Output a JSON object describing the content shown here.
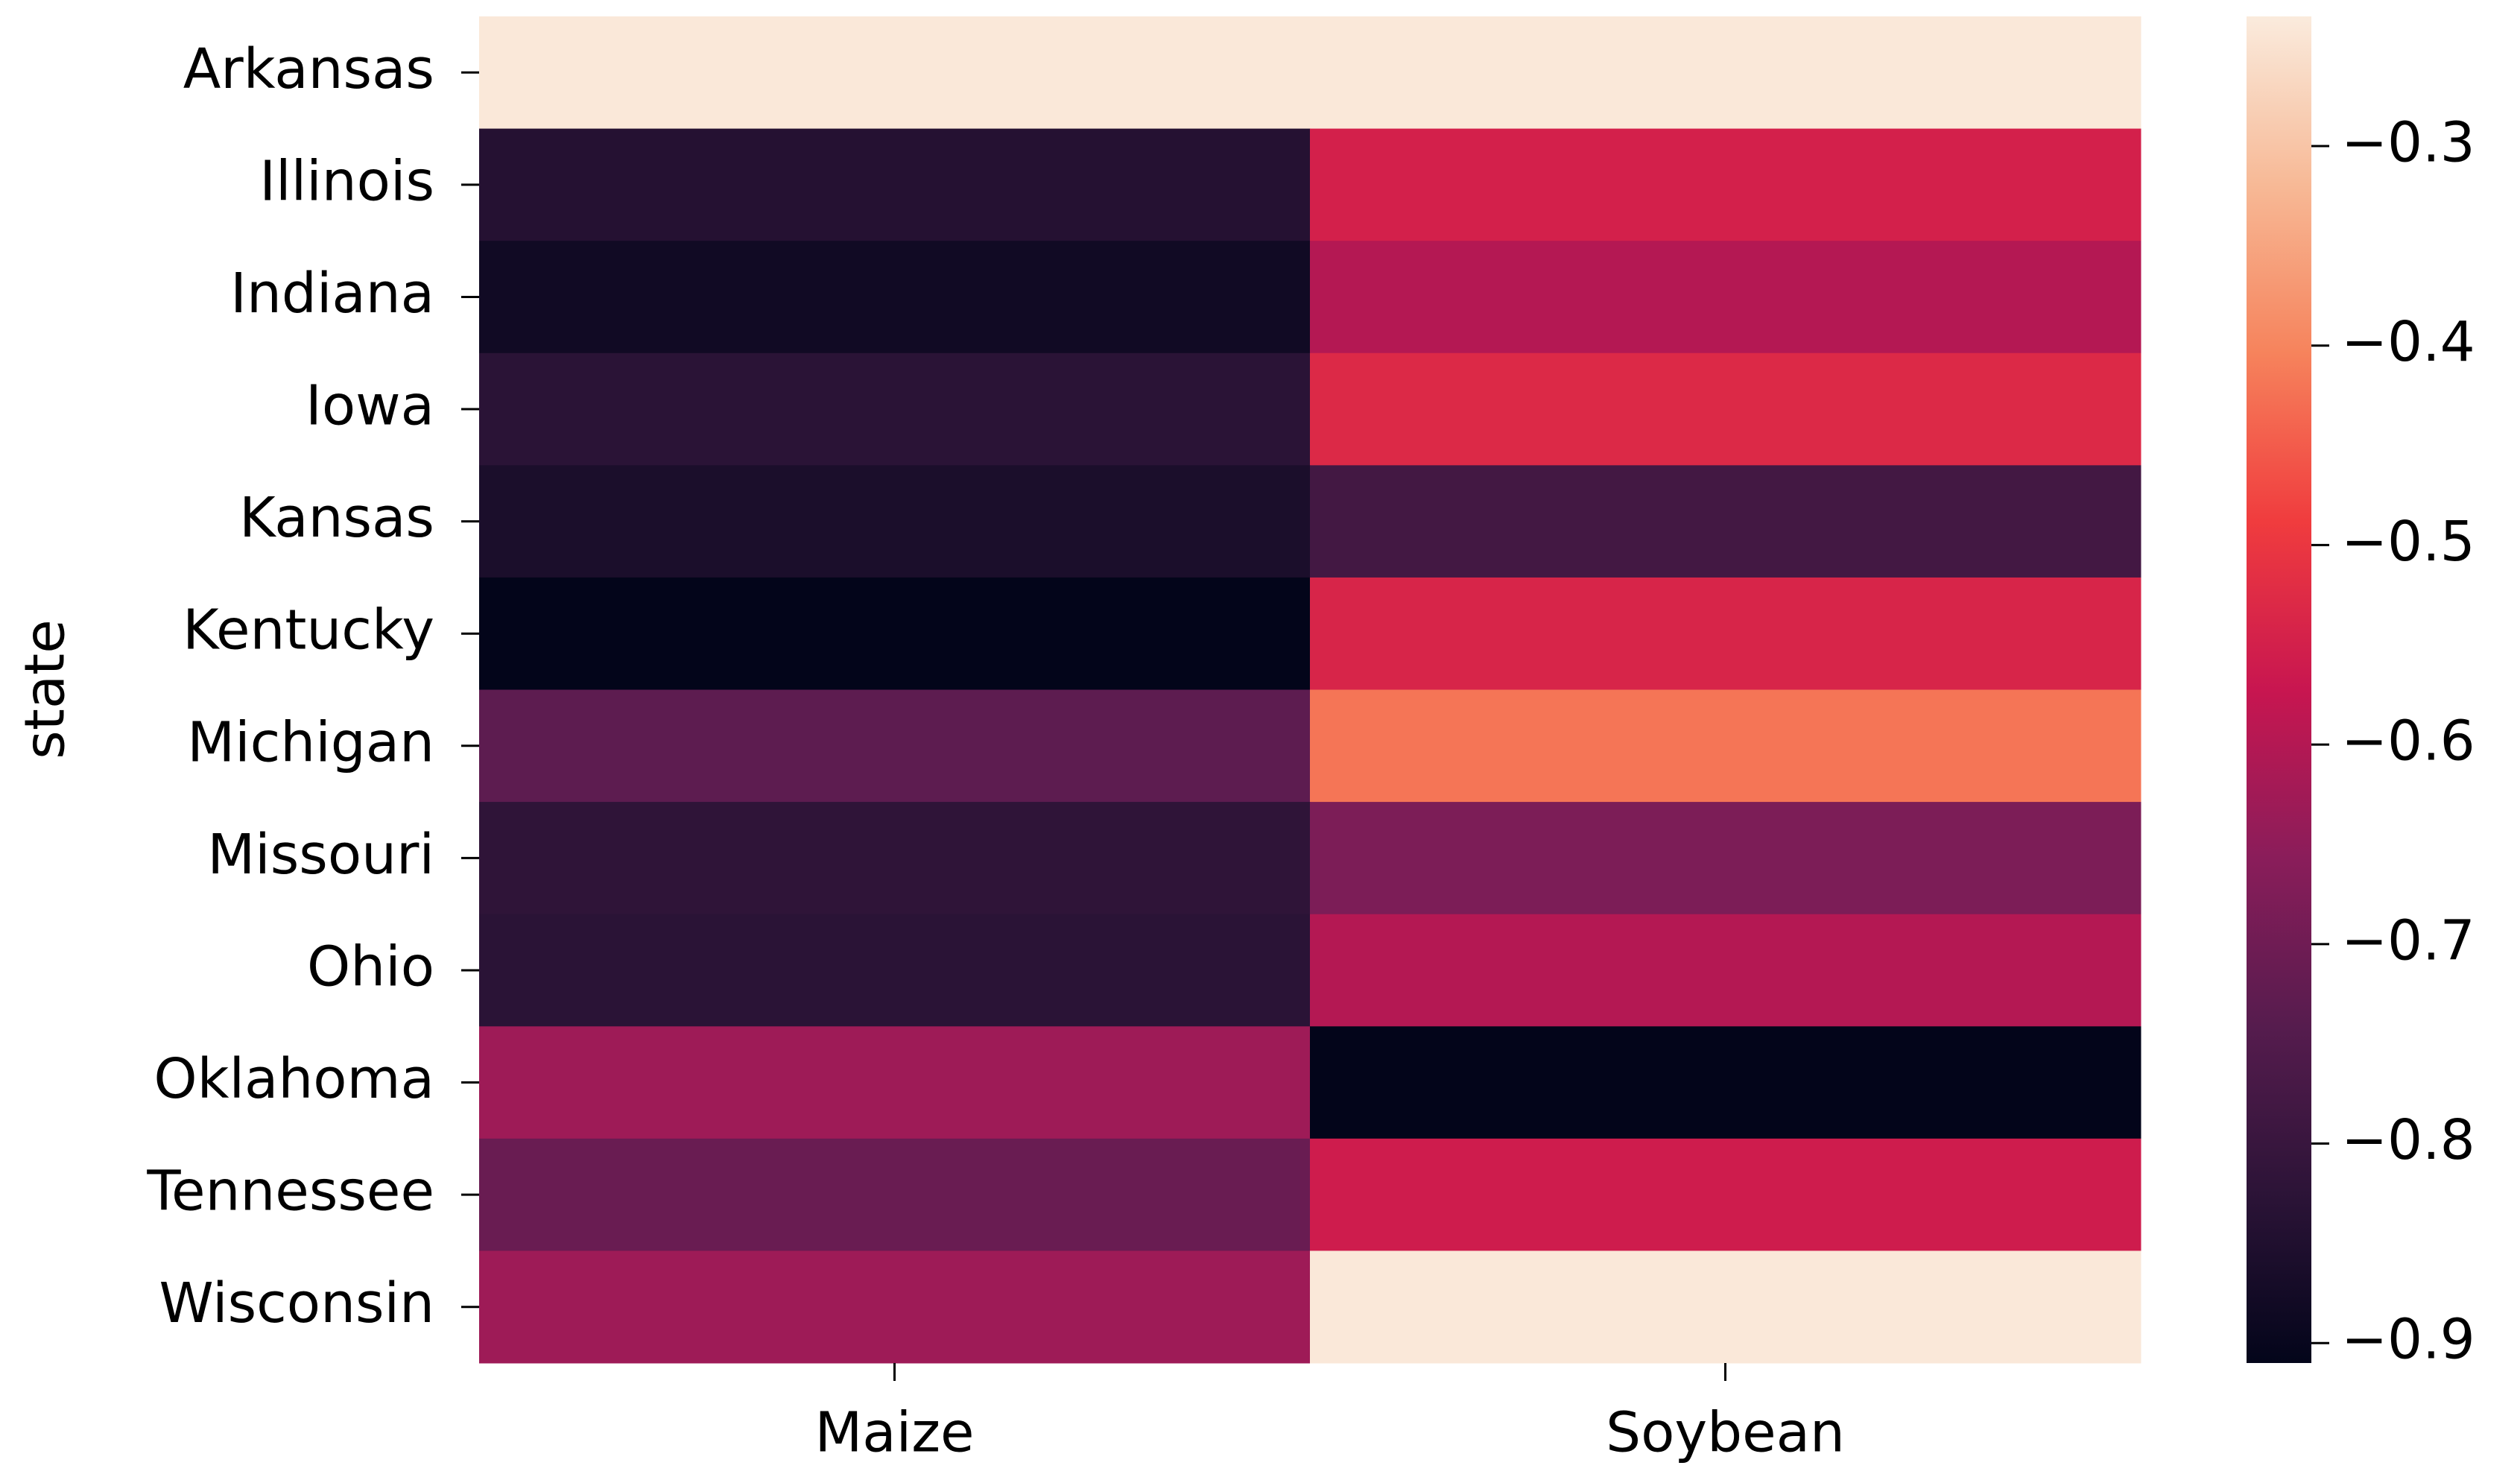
{
  "chart_data": {
    "type": "heatmap",
    "ylabel": "state",
    "columns": [
      "Maize",
      "Soybean"
    ],
    "rows": [
      "Arkansas",
      "Illinois",
      "Indiana",
      "Iowa",
      "Kansas",
      "Kentucky",
      "Michigan",
      "Missouri",
      "Ohio",
      "Oklahoma",
      "Tennessee",
      "Wisconsin"
    ],
    "values": [
      [
        -0.24,
        -0.24
      ],
      [
        -0.84,
        -0.55
      ],
      [
        -0.88,
        -0.6
      ],
      [
        -0.83,
        -0.53
      ],
      [
        -0.86,
        -0.78
      ],
      [
        -0.91,
        -0.54
      ],
      [
        -0.73,
        -0.42
      ],
      [
        -0.82,
        -0.68
      ],
      [
        -0.83,
        -0.6
      ],
      [
        -0.63,
        -0.91
      ],
      [
        -0.71,
        -0.56
      ],
      [
        -0.63,
        -0.24
      ]
    ],
    "colormap": "rocket",
    "clim": [
      -0.91,
      -0.235
    ],
    "cticks": [
      {
        "value": -0.3,
        "label": "−0.3"
      },
      {
        "value": -0.4,
        "label": "−0.4"
      },
      {
        "value": -0.5,
        "label": "−0.5"
      },
      {
        "value": -0.6,
        "label": "−0.6"
      },
      {
        "value": -0.7,
        "label": "−0.7"
      },
      {
        "value": -0.8,
        "label": "−0.8"
      },
      {
        "value": -0.9,
        "label": "−0.9"
      }
    ]
  }
}
